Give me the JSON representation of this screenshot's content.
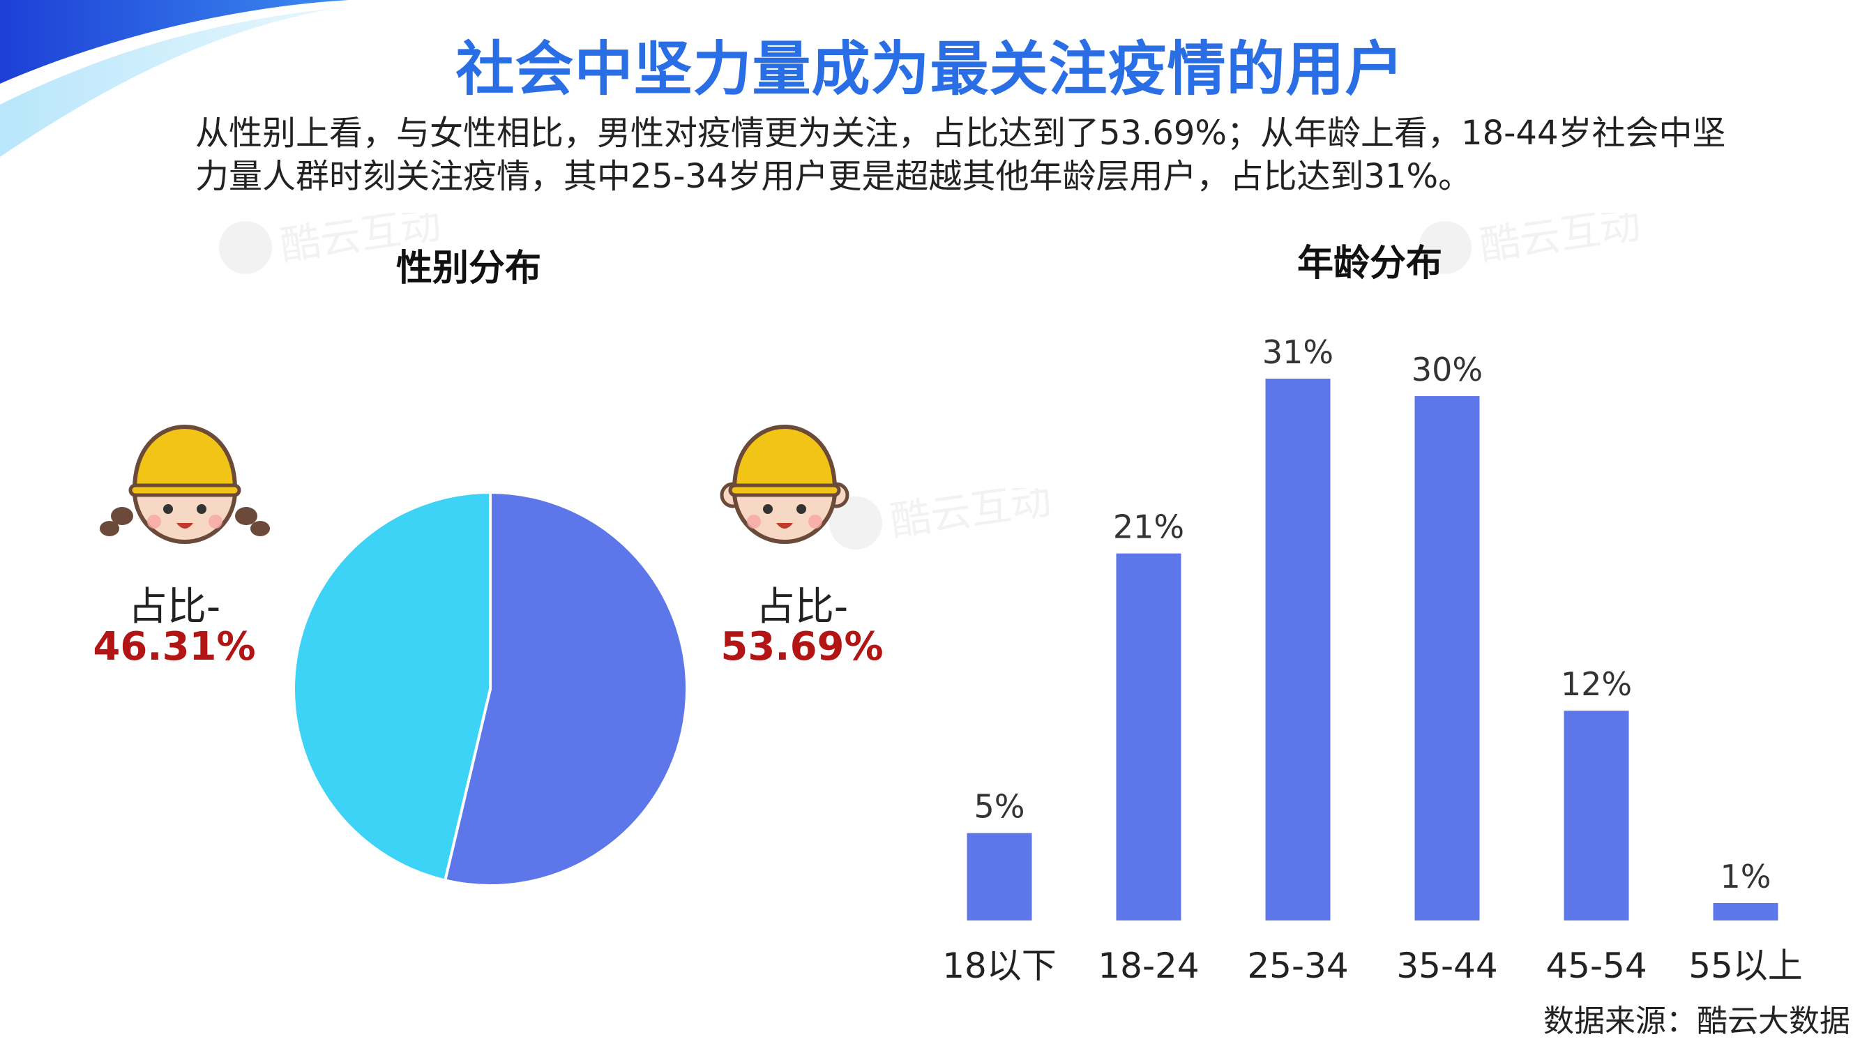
{
  "title": "社会中坚力量成为最关注疫情的用户",
  "subtitle": {
    "line1": "从性别上看，与女性相比，男性对疫情更为关注，占比达到了53.69%；从年龄上看，18-44岁社会中坚",
    "line2": "力量人群时刻关注疫情，其中25-34岁用户更是超越其他年龄层用户，占比达到31%。"
  },
  "watermark": "酷云互动",
  "gender_section": {
    "title": "性别分布",
    "female": {
      "label": "占比-",
      "value": "46.31%"
    },
    "male": {
      "label": "占比-",
      "value": "53.69%"
    }
  },
  "age_section": {
    "title": "年龄分布"
  },
  "source": "数据来源：酷云大数据",
  "colors": {
    "title": "#2a6ee6",
    "male": "#5d76ea",
    "female": "#3dd3f7",
    "bars": "#5d76ea",
    "highlight_value": "#b31414",
    "helmet": "#f2c416",
    "face": "#f7d8c4"
  },
  "chart_data": [
    {
      "type": "pie",
      "title": "性别分布",
      "labels": [
        "男性",
        "女性"
      ],
      "values": [
        53.69,
        46.31
      ],
      "colors": [
        "#5d76ea",
        "#3dd3f7"
      ],
      "start_angle_deg": 0,
      "direction": "clockwise"
    },
    {
      "type": "bar",
      "title": "年龄分布",
      "categories": [
        "18以下",
        "18-24",
        "25-34",
        "35-44",
        "45-54",
        "55以上"
      ],
      "values": [
        5,
        21,
        31,
        30,
        12,
        1
      ],
      "value_labels": [
        "5%",
        "21%",
        "31%",
        "30%",
        "12%",
        "1%"
      ],
      "ylim": [
        0,
        31
      ],
      "color": "#5d76ea",
      "grid": false
    }
  ]
}
